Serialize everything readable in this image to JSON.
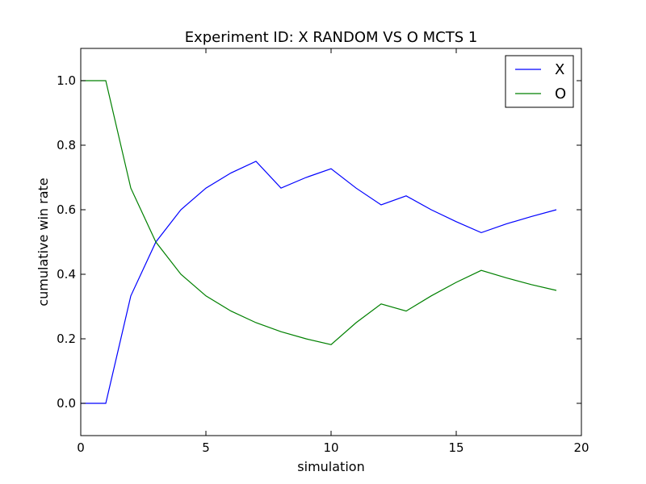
{
  "chart_data": {
    "type": "line",
    "title": "Experiment ID: X RANDOM VS O MCTS 1",
    "xlabel": "simulation",
    "ylabel": "cumulative win rate",
    "xlim": [
      0,
      20
    ],
    "ylim": [
      -0.1,
      1.1
    ],
    "xticks": [
      0,
      5,
      10,
      15,
      20
    ],
    "xtick_labels": [
      "0",
      "5",
      "10",
      "15",
      "20"
    ],
    "yticks": [
      0.0,
      0.2,
      0.4,
      0.6,
      0.8,
      1.0
    ],
    "ytick_labels": [
      "0.0",
      "0.2",
      "0.4",
      "0.6",
      "0.8",
      "1.0"
    ],
    "grid": false,
    "legend_position": "top-right",
    "x": [
      0,
      1,
      2,
      3,
      4,
      5,
      6,
      7,
      8,
      9,
      10,
      11,
      12,
      13,
      14,
      15,
      16,
      17,
      18,
      19
    ],
    "series": [
      {
        "name": "X",
        "color": "#0000ff",
        "values": [
          0.0,
          0.0,
          0.333,
          0.5,
          0.6,
          0.667,
          0.714,
          0.75,
          0.667,
          0.7,
          0.727,
          0.667,
          0.615,
          0.643,
          0.6,
          0.563,
          0.529,
          0.556,
          0.579,
          0.6
        ]
      },
      {
        "name": "O",
        "color": "#008000",
        "values": [
          1.0,
          1.0,
          0.667,
          0.5,
          0.4,
          0.333,
          0.286,
          0.25,
          0.222,
          0.2,
          0.182,
          0.25,
          0.308,
          0.286,
          0.333,
          0.375,
          0.412,
          0.389,
          0.368,
          0.35
        ]
      }
    ]
  }
}
